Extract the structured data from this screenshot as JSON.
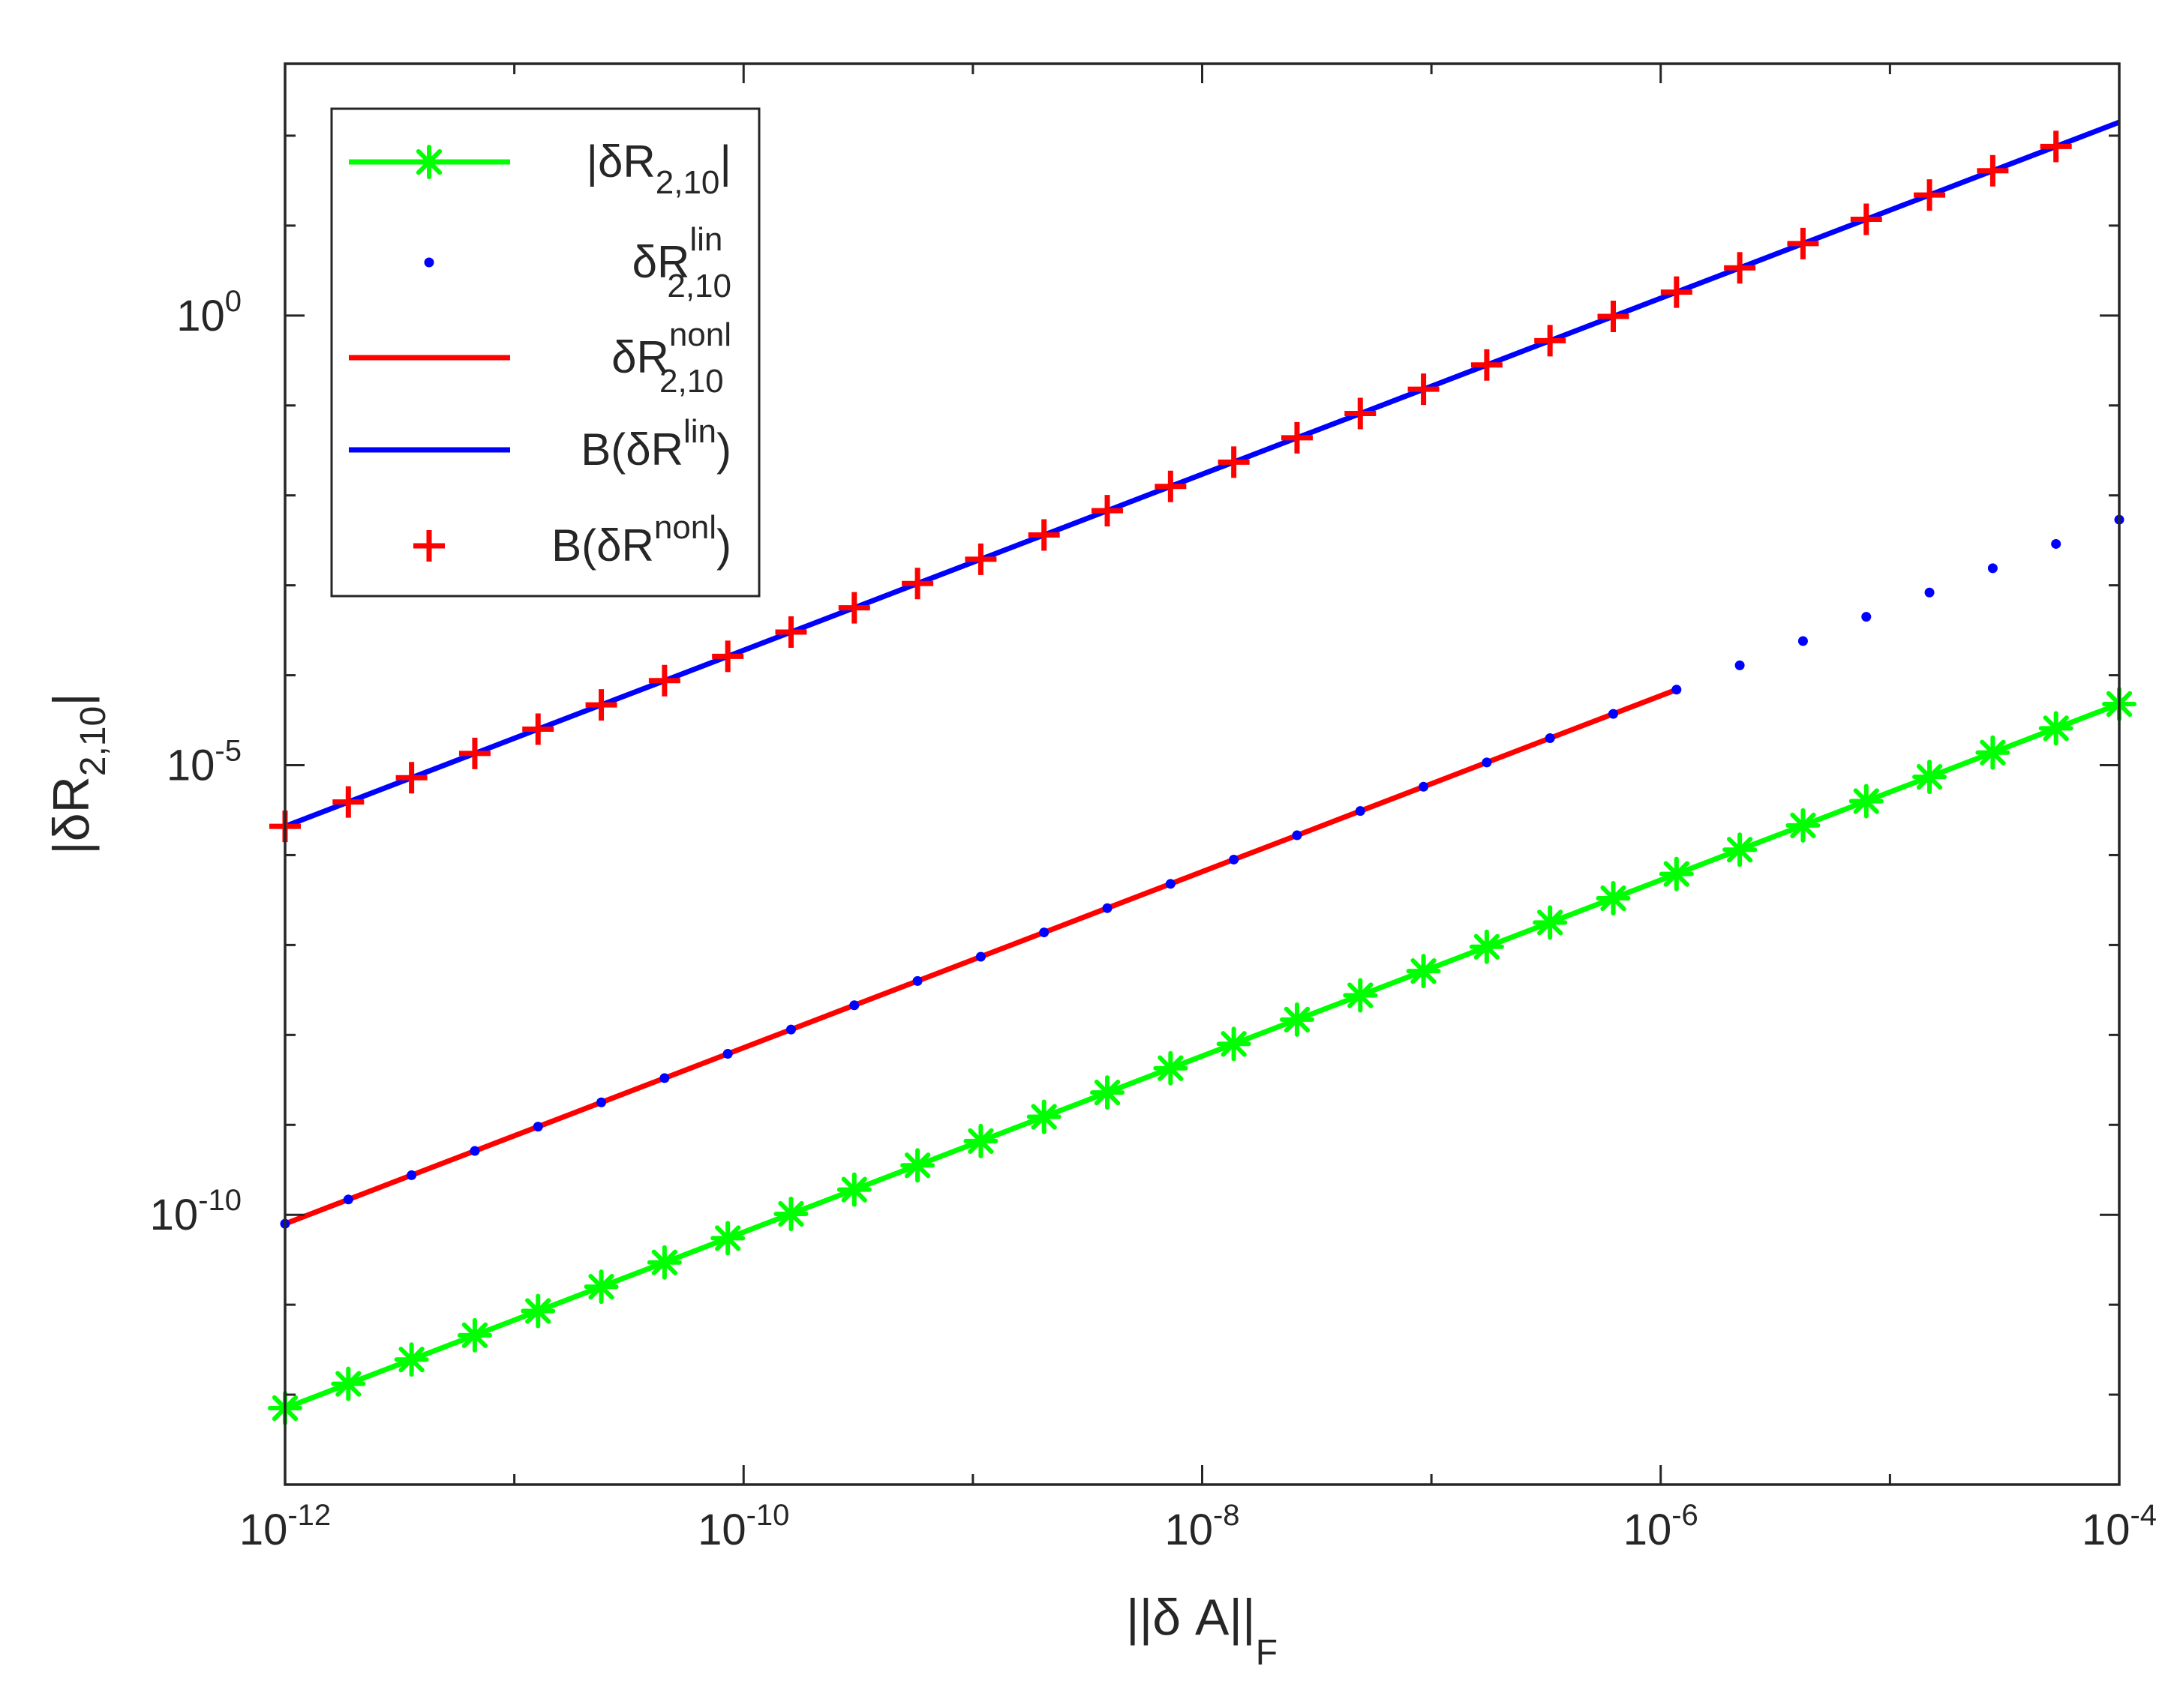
{
  "chart_data": {
    "type": "line",
    "title": "",
    "xlabel": "||δ A||F",
    "ylabel": "|δR2,10|",
    "xscale": "log",
    "yscale": "log",
    "xlim_log10": [
      -12,
      -4
    ],
    "ylim_log10": [
      -13.0,
      2.8
    ],
    "grid": false,
    "legend_position": "top-left",
    "x_ticks": [
      {
        "base": "10",
        "exp": "-12"
      },
      {
        "base": "10",
        "exp": "-10"
      },
      {
        "base": "10",
        "exp": "-8"
      },
      {
        "base": "10",
        "exp": "-6"
      },
      {
        "base": "10",
        "exp": "-4"
      }
    ],
    "y_ticks": [
      {
        "base": "10",
        "exp": "0",
        "log": 0
      },
      {
        "base": "10",
        "exp": "-5",
        "log": -5
      },
      {
        "base": "10",
        "exp": "-10",
        "log": -10
      }
    ],
    "x_log10": [
      -12.0,
      -11.7241,
      -11.4483,
      -11.1724,
      -10.8966,
      -10.6207,
      -10.3448,
      -10.069,
      -9.7931,
      -9.5172,
      -9.2414,
      -8.9655,
      -8.6897,
      -8.4138,
      -8.1379,
      -7.8621,
      -7.5862,
      -7.3103,
      -7.0345,
      -6.7586,
      -6.4828,
      -6.2069,
      -5.931,
      -5.6552,
      -5.3793,
      -5.1034,
      -4.8276,
      -4.5517,
      -4.2759,
      -4.0
    ],
    "series": [
      {
        "name": "|δR2,10|",
        "style": "line-with-asterisk",
        "color": "#00ff00",
        "y_log10": [
          -12.15,
          -11.88,
          -11.61,
          -11.34,
          -11.07,
          -10.8,
          -10.53,
          -10.26,
          -9.99,
          -9.72,
          -9.45,
          -9.18,
          -8.91,
          -8.64,
          -8.37,
          -8.1,
          -7.83,
          -7.56,
          -7.29,
          -7.02,
          -6.75,
          -6.48,
          -6.21,
          -5.94,
          -5.67,
          -5.4,
          -5.13,
          -4.86,
          -4.59,
          -4.32
        ]
      },
      {
        "name": "δR lin 2,10",
        "style": "dots",
        "color": "#0000ff",
        "y_log10": [
          -10.1,
          -9.83,
          -9.56,
          -9.29,
          -9.02,
          -8.75,
          -8.48,
          -8.21,
          -7.94,
          -7.67,
          -7.4,
          -7.13,
          -6.86,
          -6.59,
          -6.32,
          -6.05,
          -5.78,
          -5.51,
          -5.24,
          -4.97,
          -4.7,
          -4.43,
          -4.16,
          -3.89,
          -3.62,
          -3.35,
          -3.08,
          -2.81,
          -2.54,
          -2.27
        ]
      },
      {
        "name": "δR nonl 2,10",
        "style": "line",
        "color": "#ff0000",
        "y_log10": [
          -10.1,
          -9.83,
          -9.56,
          -9.29,
          -9.02,
          -8.75,
          -8.48,
          -8.21,
          -7.94,
          -7.67,
          -7.4,
          -7.13,
          -6.86,
          -6.59,
          -6.32,
          -6.05,
          -5.78,
          -5.51,
          -5.24,
          -4.97,
          -4.7,
          -4.43,
          -4.16,
          null,
          null,
          null,
          null,
          null,
          null,
          null
        ]
      },
      {
        "name": "B(δR lin)",
        "style": "line",
        "color": "#0000ff",
        "y_log10": [
          -5.68,
          -5.41,
          -5.14,
          -4.87,
          -4.6,
          -4.33,
          -4.06,
          -3.79,
          -3.52,
          -3.25,
          -2.98,
          -2.71,
          -2.44,
          -2.17,
          -1.9,
          -1.63,
          -1.36,
          -1.09,
          -0.82,
          -0.55,
          -0.28,
          -0.01,
          0.26,
          0.53,
          0.8,
          1.07,
          1.34,
          1.61,
          1.88,
          2.15
        ]
      },
      {
        "name": "B(δR nonl)",
        "style": "plus",
        "color": "#ff0000",
        "y_log10": [
          -5.68,
          -5.41,
          -5.14,
          -4.87,
          -4.6,
          -4.33,
          -4.06,
          -3.79,
          -3.52,
          -3.25,
          -2.98,
          -2.71,
          -2.44,
          -2.17,
          -1.9,
          -1.63,
          -1.36,
          -1.09,
          -0.82,
          -0.55,
          -0.28,
          -0.01,
          0.26,
          0.53,
          0.8,
          1.07,
          1.34,
          1.61,
          1.88,
          null
        ]
      }
    ]
  },
  "legend": {
    "items": [
      {
        "main": "|δR",
        "sub": "2,10",
        "sup": "",
        "tail": "|"
      },
      {
        "main": "δR",
        "sub": "2,10",
        "sup": "lin",
        "tail": ""
      },
      {
        "main": "δR",
        "sub": "2,10",
        "sup": "nonl",
        "tail": ""
      },
      {
        "main": "B(δR",
        "sub": "",
        "sup": "lin",
        "tail": ")"
      },
      {
        "main": "B(δR",
        "sub": "",
        "sup": "nonl",
        "tail": ")"
      }
    ]
  },
  "axes": {
    "xlabel_main": "||δ A||",
    "xlabel_sub": "F",
    "ylabel_main": "|δR",
    "ylabel_sub": "2,10",
    "ylabel_tail": "|"
  }
}
